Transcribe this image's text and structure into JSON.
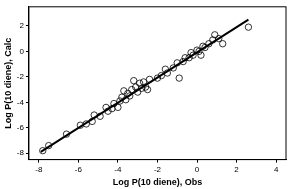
{
  "chart_data": {
    "type": "scatter",
    "x_label": "Log P(10 diene), Obs",
    "y_label": "Log P(10 diene), Calc",
    "xlim": [
      -8.5,
      4.5
    ],
    "xticks": [
      -8,
      -6,
      -4,
      -2,
      0,
      2,
      4
    ],
    "ylim": [
      -8.5,
      3.5
    ],
    "yticks": [
      -8,
      -6,
      -4,
      -2,
      0,
      2
    ],
    "grid": false,
    "series": [
      {
        "type": "scatter",
        "marker": "circle",
        "color": "#000000",
        "x": [
          -7.8,
          -7.5,
          -6.6,
          -5.9,
          -5.6,
          -5.3,
          -5.2,
          -4.9,
          -4.6,
          -4.5,
          -4.3,
          -4.2,
          -4.0,
          -3.9,
          -3.8,
          -3.7,
          -3.6,
          -3.5,
          -3.4,
          -3.3,
          -3.2,
          -3.1,
          -3.0,
          -2.9,
          -2.8,
          -2.7,
          -2.6,
          -2.5,
          -2.4,
          -2.0,
          -1.8,
          -1.6,
          -1.5,
          -1.2,
          -1.0,
          -0.9,
          -0.7,
          -0.6,
          -0.4,
          -0.3,
          -0.2,
          0.0,
          0.1,
          0.2,
          0.3,
          0.4,
          0.6,
          0.8,
          0.9,
          1.1,
          1.3,
          2.6
        ],
        "values": [
          -7.8,
          -7.4,
          -6.5,
          -5.8,
          -5.7,
          -5.5,
          -5.0,
          -5.1,
          -4.4,
          -4.7,
          -4.5,
          -4.1,
          -4.4,
          -3.9,
          -3.6,
          -3.1,
          -3.8,
          -3.3,
          -3.5,
          -3.0,
          -2.3,
          -2.8,
          -3.2,
          -2.5,
          -2.9,
          -2.4,
          -2.8,
          -3.0,
          -2.2,
          -2.1,
          -1.9,
          -1.4,
          -1.7,
          -1.3,
          -0.9,
          -2.1,
          -0.8,
          -0.5,
          -0.5,
          -0.1,
          -0.3,
          0.1,
          0.0,
          -0.3,
          0.4,
          0.3,
          0.6,
          0.9,
          1.3,
          1.0,
          0.6,
          1.9
        ]
      },
      {
        "type": "line",
        "line_style": "solid",
        "color": "#000000",
        "x": [
          -7.9,
          2.6
        ],
        "values": [
          -7.9,
          2.5
        ]
      }
    ]
  }
}
